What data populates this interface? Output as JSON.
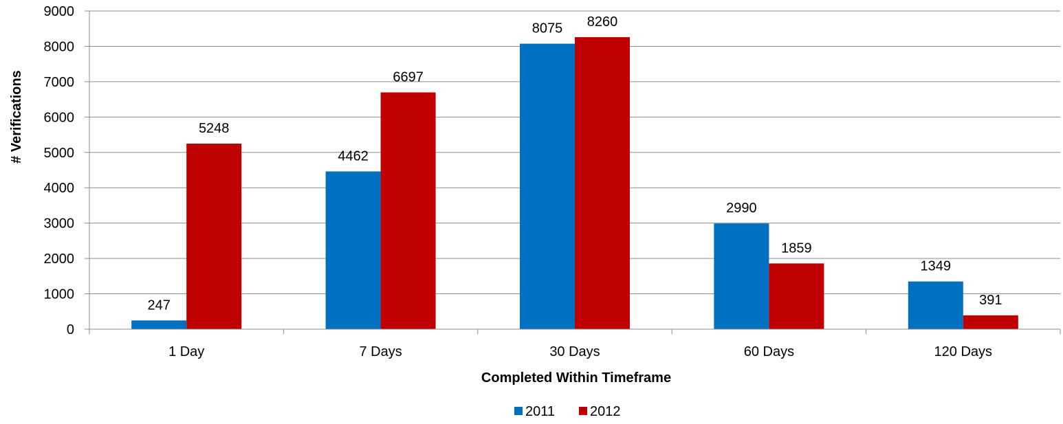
{
  "chart_data": {
    "type": "bar",
    "title": "",
    "xlabel": "Completed Within Timeframe",
    "ylabel": "# Verifications",
    "categories": [
      "1 Day",
      "7 Days",
      "30 Days",
      "60 Days",
      "120 Days"
    ],
    "series": [
      {
        "name": "2011",
        "color": "#0070C0",
        "values": [
          247,
          4462,
          8075,
          2990,
          1349
        ]
      },
      {
        "name": "2012",
        "color": "#C00000",
        "values": [
          5248,
          6697,
          8260,
          1859,
          391
        ]
      }
    ],
    "ylim": [
      0,
      9000
    ],
    "yticks": [
      0,
      1000,
      2000,
      3000,
      4000,
      5000,
      6000,
      7000,
      8000,
      9000
    ],
    "grid": true,
    "legend_position": "bottom",
    "data_labels": true
  }
}
